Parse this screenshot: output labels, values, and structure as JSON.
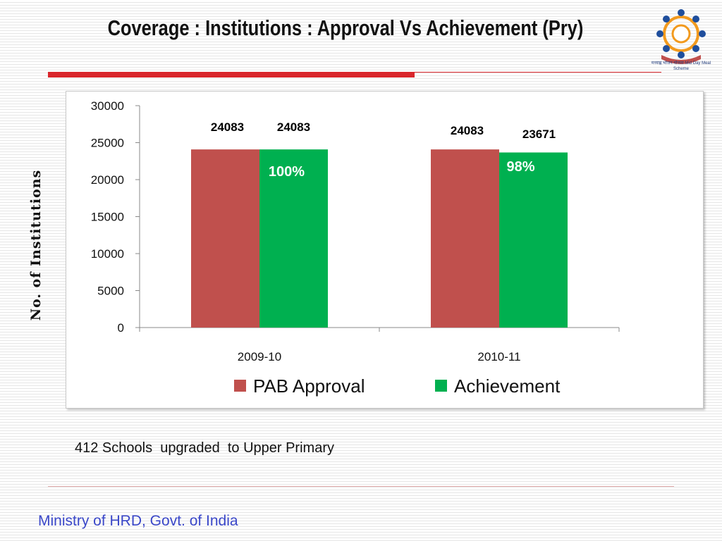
{
  "slide": {
    "title": "Coverage : Institutions : Approval Vs Achievement (Pry)",
    "note": "412 Schools  upgraded  to Upper Primary",
    "footer": "Ministry of HRD, Govt. of India",
    "logo_caption": "मध्याह्न भोजन योजना Mid Day Meal Scheme",
    "logo_icon": "mid-day-meal-logo-icon",
    "accent_color": "#d9262c"
  },
  "chart_data": {
    "type": "bar",
    "categories": [
      "2009-10",
      "2010-11"
    ],
    "series": [
      {
        "name": "PAB Approval",
        "values": [
          24083,
          24083
        ],
        "color": "#c0504d"
      },
      {
        "name": "Achievement",
        "values": [
          24083,
          23671
        ],
        "color": "#00b050"
      }
    ],
    "data_labels": [
      [
        "24083",
        "24083"
      ],
      [
        "24083",
        "23671"
      ]
    ],
    "annotations": [
      "100%",
      "98%"
    ],
    "title": "",
    "xlabel": "",
    "ylabel": "No. of Institutions",
    "ylim": [
      0,
      30000
    ],
    "yticks": [
      0,
      5000,
      10000,
      15000,
      20000,
      25000,
      30000
    ],
    "grid": false,
    "legend": "bottom"
  }
}
